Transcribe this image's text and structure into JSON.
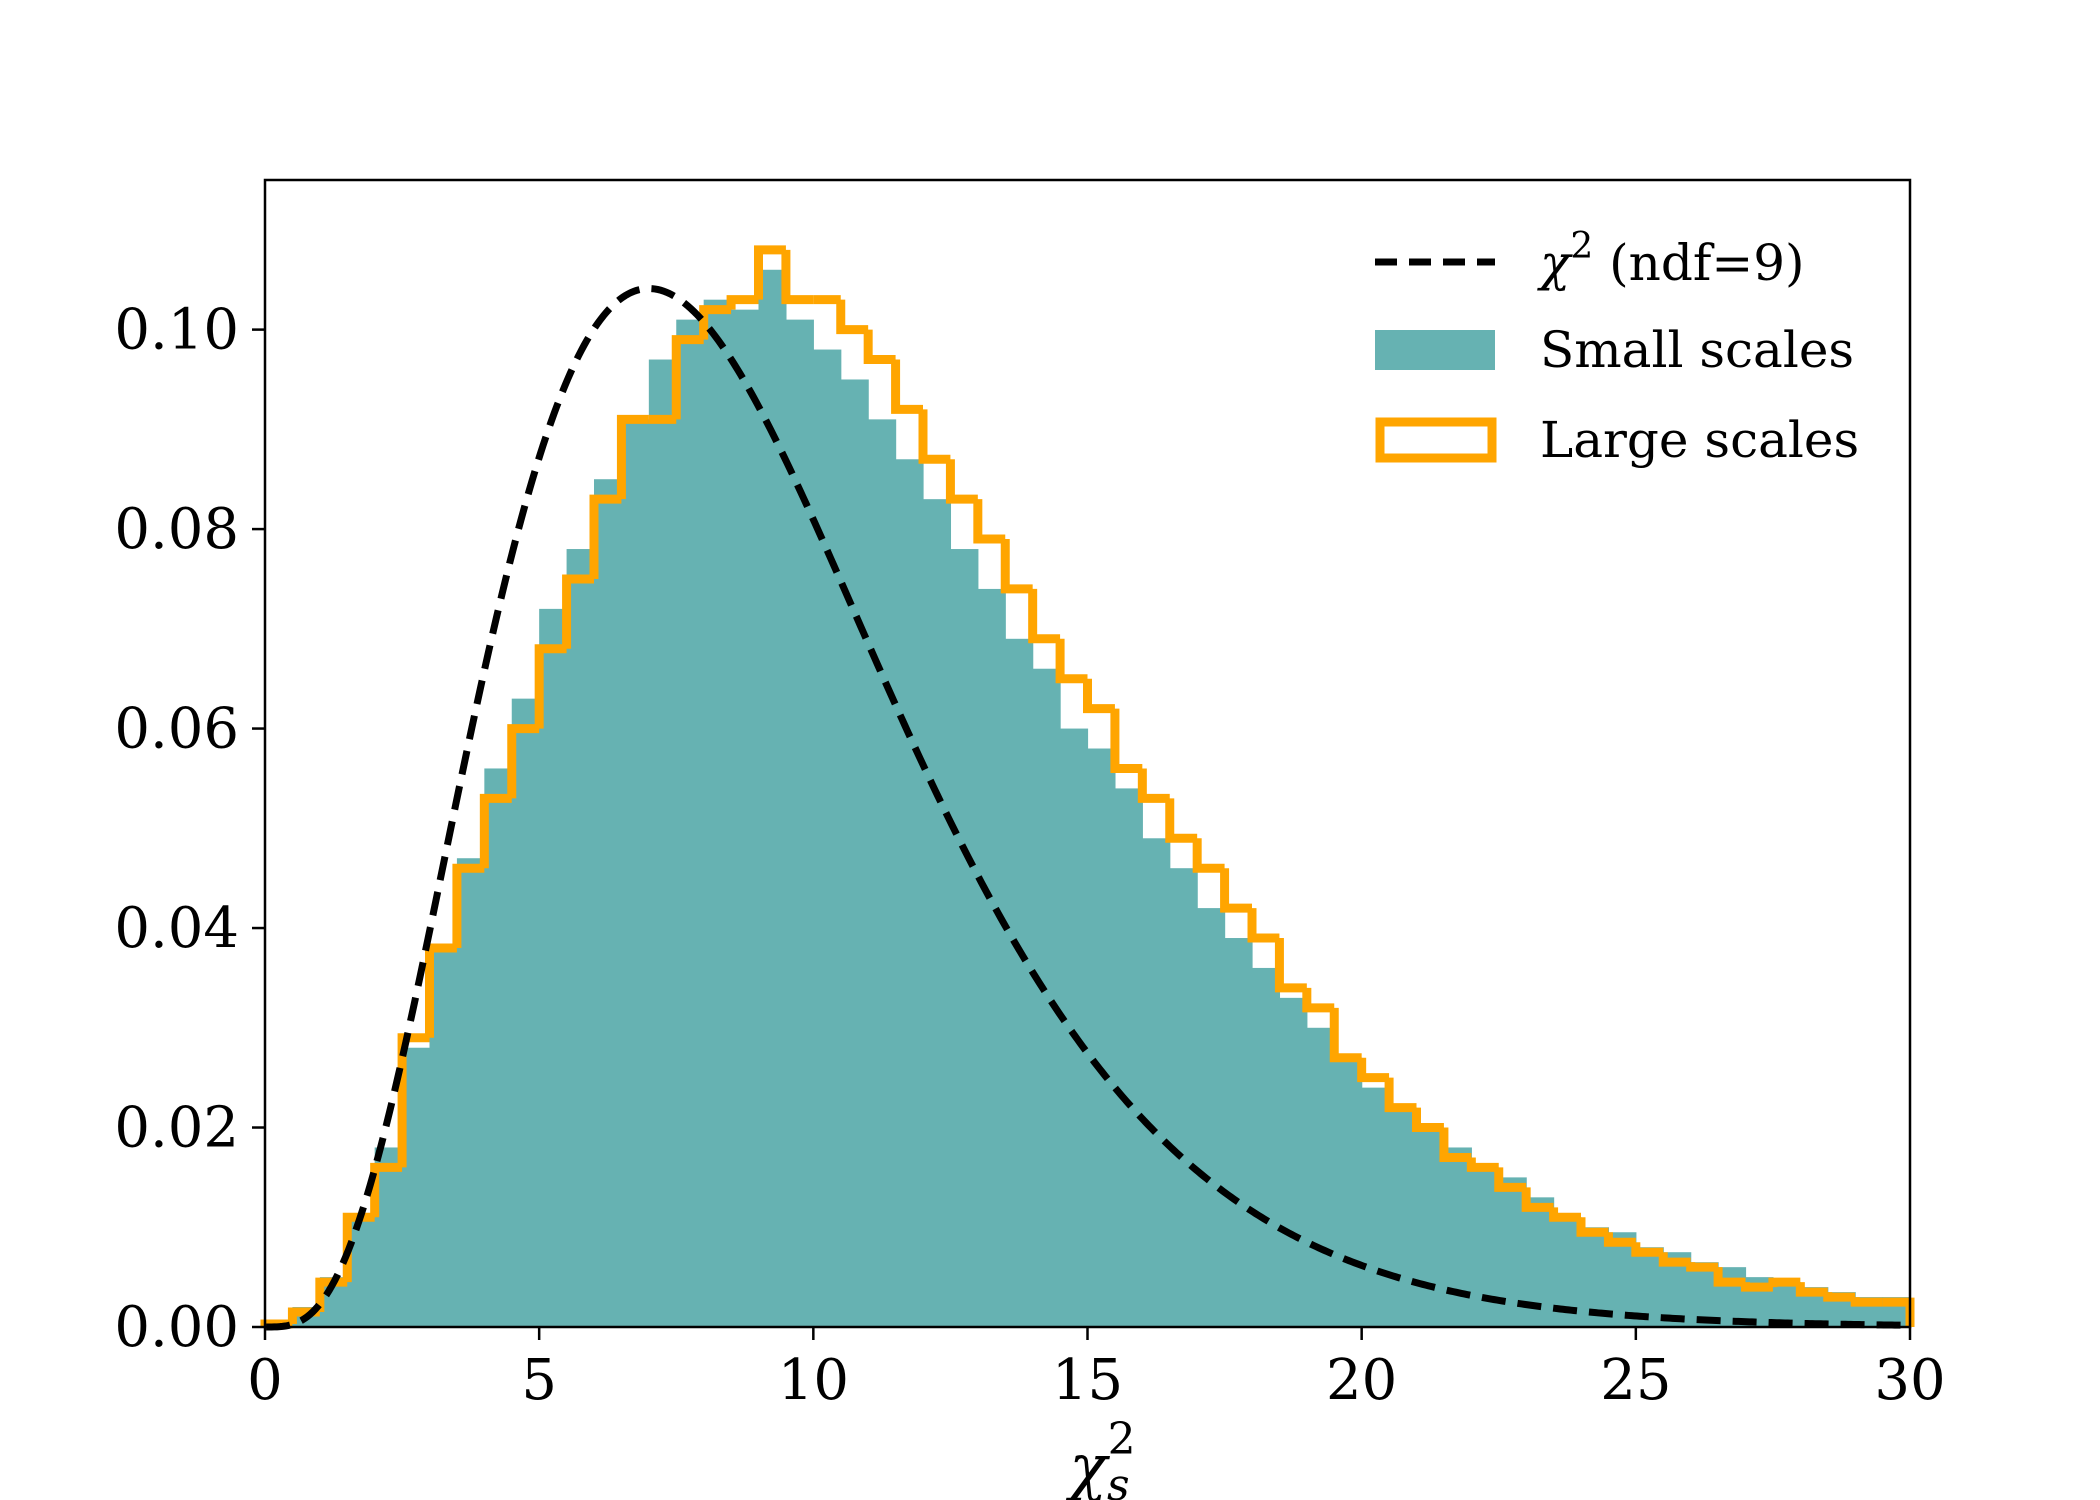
{
  "chart_data": {
    "type": "histogram",
    "title": "",
    "xlabel": "χ",
    "xlabel_superscript": "2",
    "xlabel_subscript": "s",
    "ylabel": "",
    "xlim": [
      0,
      30
    ],
    "ylim": [
      0,
      0.115
    ],
    "xticks": [
      "0",
      "5",
      "10",
      "15",
      "20",
      "25",
      "30"
    ],
    "yticks": [
      "0.00",
      "0.02",
      "0.04",
      "0.06",
      "0.08",
      "0.10"
    ],
    "grid": false,
    "legend_position": "top-right",
    "colors": {
      "small": "#66b2b2",
      "large": "#ffa500",
      "curve": "#000000"
    },
    "bin_width": 0.5,
    "bin_start": 0,
    "series": [
      {
        "name": "Small scales",
        "kind": "filled-histogram",
        "values": [
          0.0005,
          0.002,
          0.005,
          0.011,
          0.018,
          0.028,
          0.038,
          0.047,
          0.056,
          0.063,
          0.072,
          0.078,
          0.085,
          0.091,
          0.097,
          0.101,
          0.103,
          0.102,
          0.106,
          0.101,
          0.098,
          0.095,
          0.091,
          0.087,
          0.083,
          0.078,
          0.074,
          0.069,
          0.066,
          0.06,
          0.058,
          0.054,
          0.049,
          0.046,
          0.042,
          0.039,
          0.036,
          0.033,
          0.03,
          0.027,
          0.024,
          0.022,
          0.02,
          0.018,
          0.016,
          0.015,
          0.013,
          0.011,
          0.01,
          0.0095,
          0.008,
          0.0075,
          0.0065,
          0.006,
          0.005,
          0.0045,
          0.004,
          0.0035,
          0.003,
          0.003
        ]
      },
      {
        "name": "Large scales",
        "kind": "step-histogram",
        "values": [
          0.0003,
          0.0015,
          0.0045,
          0.011,
          0.016,
          0.029,
          0.038,
          0.046,
          0.053,
          0.06,
          0.068,
          0.075,
          0.083,
          0.091,
          0.091,
          0.099,
          0.102,
          0.103,
          0.108,
          0.103,
          0.103,
          0.1,
          0.097,
          0.092,
          0.087,
          0.083,
          0.079,
          0.074,
          0.069,
          0.065,
          0.062,
          0.056,
          0.053,
          0.049,
          0.046,
          0.042,
          0.039,
          0.034,
          0.032,
          0.027,
          0.025,
          0.022,
          0.02,
          0.017,
          0.016,
          0.014,
          0.012,
          0.011,
          0.0095,
          0.0085,
          0.0075,
          0.0065,
          0.006,
          0.0045,
          0.004,
          0.0045,
          0.0035,
          0.003,
          0.0025,
          0.0025
        ]
      },
      {
        "name": "χ² (ndf=9)",
        "kind": "theory-curve",
        "ndf": 9
      }
    ],
    "legend": [
      {
        "key": "curve",
        "label_main": "χ",
        "label_sup": "2",
        "label_rest": " (ndf=9)"
      },
      {
        "key": "small",
        "label": "Small scales"
      },
      {
        "key": "large",
        "label": "Large scales"
      }
    ]
  }
}
